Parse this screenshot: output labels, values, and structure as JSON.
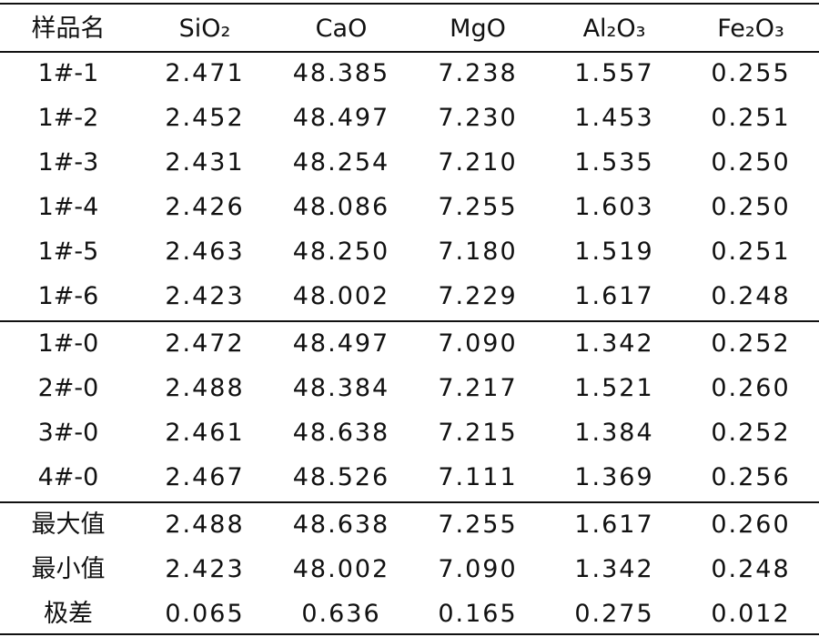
{
  "table": {
    "header": [
      "样品名",
      "SiO₂",
      "CaO",
      "MgO",
      "Al₂O₃",
      "Fe₂O₃"
    ],
    "groups": [
      [
        [
          "1#-1",
          "2.471",
          "48.385",
          "7.238",
          "1.557",
          "0.255"
        ],
        [
          "1#-2",
          "2.452",
          "48.497",
          "7.230",
          "1.453",
          "0.251"
        ],
        [
          "1#-3",
          "2.431",
          "48.254",
          "7.210",
          "1.535",
          "0.250"
        ],
        [
          "1#-4",
          "2.426",
          "48.086",
          "7.255",
          "1.603",
          "0.250"
        ],
        [
          "1#-5",
          "2.463",
          "48.250",
          "7.180",
          "1.519",
          "0.251"
        ],
        [
          "1#-6",
          "2.423",
          "48.002",
          "7.229",
          "1.617",
          "0.248"
        ]
      ],
      [
        [
          "1#-0",
          "2.472",
          "48.497",
          "7.090",
          "1.342",
          "0.252"
        ],
        [
          "2#-0",
          "2.488",
          "48.384",
          "7.217",
          "1.521",
          "0.260"
        ],
        [
          "3#-0",
          "2.461",
          "48.638",
          "7.215",
          "1.384",
          "0.252"
        ],
        [
          "4#-0",
          "2.467",
          "48.526",
          "7.111",
          "1.369",
          "0.256"
        ]
      ],
      [
        [
          "最大值",
          "2.488",
          "48.638",
          "7.255",
          "1.617",
          "0.260"
        ],
        [
          "最小值",
          "2.423",
          "48.002",
          "7.090",
          "1.342",
          "0.248"
        ],
        [
          "极差",
          "0.065",
          "0.636",
          "0.165",
          "0.275",
          "0.012"
        ]
      ]
    ]
  }
}
